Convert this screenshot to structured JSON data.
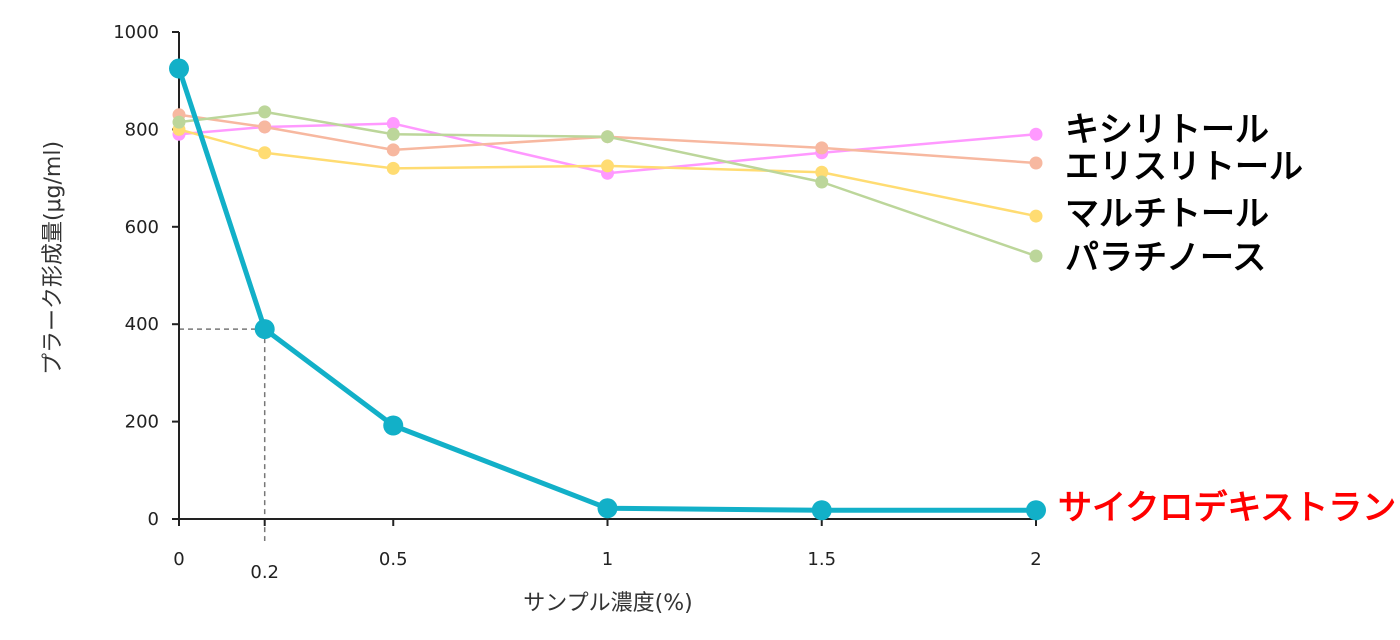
{
  "chart_data": {
    "type": "line",
    "x": [
      0,
      0.2,
      0.5,
      1,
      1.5,
      2
    ],
    "x_ticks": [
      {
        "value": 0,
        "label": "0"
      },
      {
        "value": 0.2,
        "label": "0.2"
      },
      {
        "value": 0.5,
        "label": "0.5"
      },
      {
        "value": 1,
        "label": "1"
      },
      {
        "value": 1.5,
        "label": "1.5"
      },
      {
        "value": 2,
        "label": "2"
      }
    ],
    "y_ticks": [
      0,
      200,
      400,
      600,
      800,
      1000
    ],
    "xlim": [
      0,
      2
    ],
    "ylim": [
      0,
      1000
    ],
    "xlabel": "サンプル濃度(%)",
    "ylabel": "プラーク形成量(μg/ml)",
    "grid": false,
    "legend": "inline-right",
    "reference": {
      "x": 0.2,
      "y": 390
    },
    "series": [
      {
        "name": "キシリトール",
        "color": "#ff99ff",
        "values": [
          790,
          805,
          812,
          710,
          752,
          790
        ]
      },
      {
        "name": "エリスリトール",
        "color": "#f7b8a0",
        "values": [
          830,
          805,
          758,
          785,
          762,
          731
        ]
      },
      {
        "name": "マルチトール",
        "color": "#ffdc72",
        "values": [
          800,
          752,
          720,
          725,
          712,
          622
        ]
      },
      {
        "name": "パラチノース",
        "color": "#bcd69a",
        "values": [
          815,
          836,
          790,
          785,
          692,
          540
        ]
      },
      {
        "name": "サイクロデキストラン",
        "color": "#12b0c8",
        "label_color": "#ff0000",
        "values": [
          925,
          390,
          192,
          22,
          18,
          18
        ]
      }
    ]
  }
}
